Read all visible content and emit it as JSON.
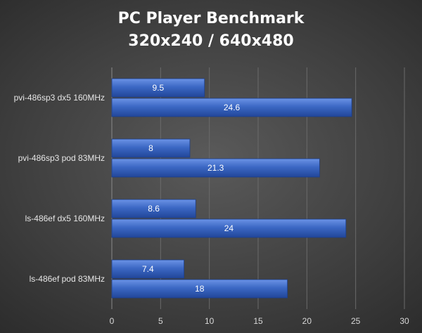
{
  "chart_data": {
    "type": "bar",
    "orientation": "horizontal",
    "title": [
      "PC Player Benchmark",
      "320x240 / 640x480"
    ],
    "categories": [
      "pvi-486sp3 dx5 160MHz",
      "pvi-486sp3 pod 83MHz",
      "ls-486ef dx5 160MHz",
      "ls-486ef pod 83MHz"
    ],
    "series": [
      {
        "values": [
          9.5,
          8,
          8.6,
          7.4
        ]
      },
      {
        "values": [
          24.6,
          21.3,
          24,
          18
        ]
      }
    ],
    "data_labels": [
      [
        "9.5",
        "8",
        "8.6",
        "7.4"
      ],
      [
        "24.6",
        "21.3",
        "24",
        "18"
      ]
    ],
    "xlim": [
      0,
      30
    ],
    "xticks": [
      0,
      5,
      10,
      15,
      20,
      25,
      30
    ],
    "grid": true,
    "legend": "none",
    "bar_color": "#3c68c4"
  }
}
